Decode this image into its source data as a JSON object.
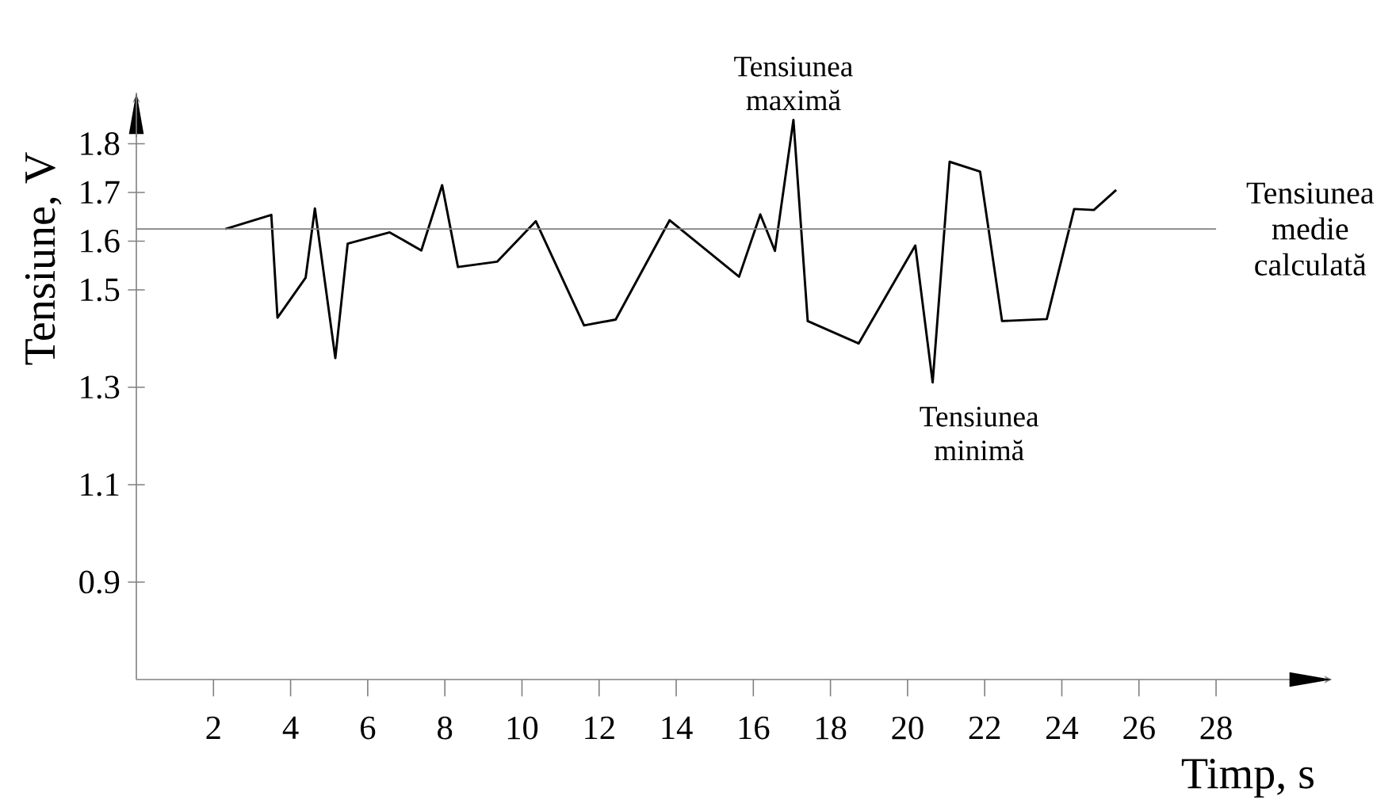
{
  "chart_data": {
    "type": "line",
    "xlabel": "Timp, s",
    "ylabel": "Tensiune, V",
    "xlim": [
      0,
      31
    ],
    "ylim": [
      0.7,
      1.9
    ],
    "xticks": [
      2,
      4,
      6,
      8,
      10,
      12,
      14,
      16,
      18,
      20,
      22,
      24,
      26,
      28
    ],
    "yticks": [
      0.9,
      1.1,
      1.3,
      1.5,
      1.6,
      1.7,
      1.8
    ],
    "series": [
      {
        "color": "#000000",
        "x": [
          2.31,
          3.5,
          3.66,
          4.39,
          4.63,
          5.16,
          5.48,
          6.57,
          7.39,
          7.93,
          8.34,
          9.36,
          10.36,
          11.61,
          12.43,
          13.83,
          15.63,
          16.18,
          16.56,
          17.04,
          17.41,
          18.73,
          20.2,
          20.65,
          21.09,
          21.88,
          22.45,
          23.61,
          24.32,
          24.83,
          25.41
        ],
        "values": [
          1.625,
          1.654,
          1.443,
          1.525,
          1.667,
          1.36,
          1.595,
          1.618,
          1.581,
          1.715,
          1.547,
          1.558,
          1.641,
          1.427,
          1.439,
          1.643,
          1.527,
          1.655,
          1.58,
          1.849,
          1.436,
          1.39,
          1.591,
          1.31,
          1.763,
          1.743,
          1.436,
          1.44,
          1.666,
          1.664,
          1.705
        ]
      }
    ],
    "ref_lines": [
      {
        "axis": "y",
        "value": 1.625,
        "label": "Tensiunea medie calculată",
        "color": "#808080"
      }
    ],
    "annotations": [
      {
        "text": "Tensiunea maximă",
        "x": 17.04,
        "y": 1.849
      },
      {
        "text": "Tensiunea minimă",
        "x": 20.65,
        "y": 1.31
      }
    ]
  }
}
